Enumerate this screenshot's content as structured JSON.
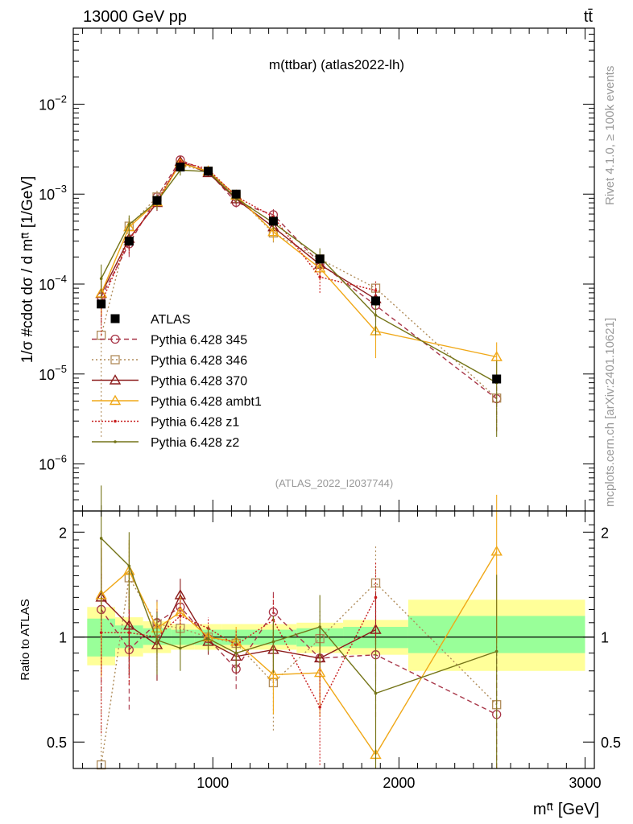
{
  "header": {
    "left_label": "13000 GeV pp",
    "right_label": "tt̄"
  },
  "side_labels": {
    "rivet": "Rivet 4.1.0, ≥ 100k events",
    "mcplots": "mcplots.cern.ch [arXiv:2401.10621]"
  },
  "colors": {
    "ATLAS": "#000000",
    "p345": "#a83648",
    "p346": "#b08c5a",
    "p370": "#8c1c1c",
    "ambt1": "#f0a818",
    "z1": "#c81e1e",
    "z2": "#747418",
    "band_inner": "#99ff99",
    "band_outer": "#ffff99"
  },
  "chart_data": [
    {
      "panel": "main",
      "type": "line",
      "title": "m(ttbar) (atlas2022-lh)",
      "watermark": "(ATLAS_2022_I2037744)",
      "ylabel": "1/σ #cdot dσ / d mᵗ̄ᵗ [1/GeV]",
      "yscale": "log",
      "ylim": [
        3e-07,
        0.07
      ],
      "xlim": [
        250,
        3050
      ],
      "yticks": [
        {
          "value": 1e-06,
          "base": "10",
          "exp": "−6"
        },
        {
          "value": 1e-05,
          "base": "10",
          "exp": "−5"
        },
        {
          "value": 0.0001,
          "base": "10",
          "exp": "−4"
        },
        {
          "value": 0.001,
          "base": "10",
          "exp": "−3"
        },
        {
          "value": 0.01,
          "base": "10",
          "exp": "−2"
        }
      ],
      "x": [
        400,
        550,
        700,
        825,
        975,
        1125,
        1325,
        1575,
        1875,
        2525
      ],
      "bin_edges": [
        325,
        475,
        625,
        775,
        900,
        1050,
        1200,
        1450,
        1700,
        2050,
        3000
      ],
      "legend": [
        "ATLAS",
        "Pythia 6.428 345",
        "Pythia 6.428 346",
        "Pythia 6.428 370",
        "Pythia 6.428 ambt1",
        "Pythia 6.428 z1",
        "Pythia 6.428 z2"
      ],
      "series": [
        {
          "key": "ATLAS",
          "name": "ATLAS",
          "marker": "square-filled",
          "values": [
            6e-05,
            0.0003,
            0.00085,
            0.002,
            0.0018,
            0.001,
            0.0005,
            0.00019,
            6.5e-05,
            8.8e-06
          ]
        },
        {
          "key": "p345",
          "name": "Pythia 6.428 345",
          "marker": "circle",
          "dash": "6,4",
          "values": [
            7.2e-05,
            0.00028,
            0.00093,
            0.0024,
            0.00178,
            0.00081,
            0.00059,
            0.00017,
            5.8e-05,
            5.3e-06
          ],
          "errors": [
            3.5e-05,
            8e-05,
            0.00016,
            0.00025,
            0.00015,
            0.0001,
            9e-05,
            4e-05,
            2e-05,
            3e-06
          ]
        },
        {
          "key": "p346",
          "name": "Pythia 6.428 346",
          "marker": "square",
          "dash": "2,3",
          "values": [
            2.7e-05,
            0.00044,
            0.00093,
            0.0021,
            0.0018,
            0.00096,
            0.00037,
            0.00019,
            9e-05,
            5.4e-06
          ],
          "errors": [
            2.5e-05,
            0.00013,
            0.00016,
            0.00024,
            0.00015,
            0.0001,
            8e-05,
            4e-05,
            2.2e-05,
            3e-06
          ]
        },
        {
          "key": "p370",
          "name": "Pythia 6.428 370",
          "marker": "triangle",
          "values": [
            7.8e-05,
            0.00032,
            0.0008,
            0.0023,
            0.00172,
            0.00088,
            0.00043,
            0.000165,
            6.8e-05,
            null
          ],
          "errors": [
            3.5e-05,
            9e-05,
            0.00015,
            0.00025,
            0.00015,
            0.0001,
            8e-05,
            4e-05,
            2e-05,
            null
          ]
        },
        {
          "key": "ambt1",
          "name": "Pythia 6.428 ambt1",
          "marker": "triangle",
          "values": [
            7.9e-05,
            0.00043,
            0.00082,
            0.0022,
            0.0018,
            0.00097,
            0.00038,
            0.00015,
            3e-05,
            1.55e-05
          ],
          "errors": [
            3.5e-05,
            0.00011,
            0.00015,
            0.00025,
            0.00015,
            0.0001,
            8e-05,
            4e-05,
            1.5e-05,
            7e-06
          ]
        },
        {
          "key": "z1",
          "name": "Pythia 6.428 z1",
          "marker": "dot",
          "dash": "2,2",
          "values": [
            6.2e-05,
            0.00031,
            0.00083,
            0.0023,
            0.0019,
            0.00094,
            0.00056,
            0.00012,
            8.5e-05,
            null
          ],
          "errors": [
            3.5e-05,
            9e-05,
            0.00015,
            0.00025,
            0.00015,
            0.0001,
            9e-05,
            4e-05,
            2.2e-05,
            null
          ]
        },
        {
          "key": "z2",
          "name": "Pythia 6.428 z2",
          "marker": "dot",
          "values": [
            0.000115,
            0.00046,
            0.00083,
            0.00185,
            0.00178,
            0.0009,
            0.00048,
            0.0002,
            4.5e-05,
            8e-06
          ],
          "errors": [
            5e-05,
            0.00012,
            0.00016,
            0.00024,
            0.00015,
            0.0001,
            8e-05,
            5e-05,
            1.8e-05,
            6e-06
          ]
        }
      ]
    },
    {
      "panel": "ratio",
      "type": "line",
      "ylabel": "Ratio to ATLAS",
      "yscale": "log",
      "ylim": [
        0.42,
        2.3
      ],
      "xlabel": "mᵗ̄ᵗ [GeV]",
      "xticks": [
        1000,
        2000,
        3000
      ],
      "yticks": [
        0.5,
        1,
        2
      ],
      "x": [
        400,
        550,
        700,
        825,
        975,
        1125,
        1325,
        1575,
        1875,
        2525
      ],
      "band_inner": [
        [
          0.88,
          1.13
        ],
        [
          0.93,
          1.08
        ],
        [
          0.95,
          1.06
        ],
        [
          0.95,
          1.05
        ],
        [
          0.95,
          1.05
        ],
        [
          0.95,
          1.05
        ],
        [
          0.95,
          1.05
        ],
        [
          0.94,
          1.06
        ],
        [
          0.93,
          1.07
        ],
        [
          0.9,
          1.15
        ]
      ],
      "band_outer": [
        [
          0.83,
          1.22
        ],
        [
          0.88,
          1.14
        ],
        [
          0.9,
          1.11
        ],
        [
          0.92,
          1.09
        ],
        [
          0.92,
          1.09
        ],
        [
          0.92,
          1.09
        ],
        [
          0.92,
          1.09
        ],
        [
          0.9,
          1.1
        ],
        [
          0.89,
          1.12
        ],
        [
          0.8,
          1.28
        ]
      ],
      "series": [
        {
          "key": "p345",
          "values": [
            1.2,
            0.92,
            1.1,
            1.22,
            0.99,
            0.81,
            1.18,
            0.87,
            0.89,
            0.6
          ],
          "errors": [
            0.5,
            0.3,
            0.2,
            0.13,
            0.08,
            0.1,
            0.18,
            0.2,
            0.3,
            0.3
          ]
        },
        {
          "key": "p346",
          "values": [
            0.43,
            1.48,
            1.09,
            1.06,
            1.0,
            0.96,
            0.74,
            0.99,
            1.43,
            0.64
          ],
          "errors": [
            0.3,
            0.4,
            0.2,
            0.13,
            0.08,
            0.1,
            0.2,
            0.2,
            0.4,
            0.3
          ]
        },
        {
          "key": "p370",
          "values": [
            1.3,
            1.08,
            0.95,
            1.32,
            0.97,
            0.88,
            0.92,
            0.87,
            1.05,
            null
          ],
          "errors": [
            0.5,
            0.3,
            0.2,
            0.15,
            0.08,
            0.1,
            0.18,
            0.2,
            0.3,
            null
          ]
        },
        {
          "key": "ambt1",
          "values": [
            1.32,
            1.55,
            1.06,
            1.18,
            1.0,
            0.97,
            0.78,
            0.79,
            0.46,
            1.76
          ],
          "errors": [
            0.55,
            0.35,
            0.2,
            0.13,
            0.08,
            0.1,
            0.18,
            0.2,
            0.2,
            0.8
          ]
        },
        {
          "key": "z1",
          "values": [
            1.03,
            1.03,
            1.0,
            1.15,
            1.06,
            0.95,
            1.12,
            0.63,
            1.3,
            null
          ],
          "errors": [
            0.5,
            0.3,
            0.2,
            0.13,
            0.08,
            0.1,
            0.2,
            0.2,
            0.35,
            null
          ]
        },
        {
          "key": "z2",
          "values": [
            1.92,
            1.6,
            0.98,
            0.93,
            0.99,
            0.9,
            0.97,
            1.07,
            0.69,
            0.91
          ],
          "errors": [
            0.8,
            0.4,
            0.2,
            0.13,
            0.08,
            0.1,
            0.18,
            0.25,
            0.3,
            0.6
          ]
        }
      ]
    }
  ]
}
